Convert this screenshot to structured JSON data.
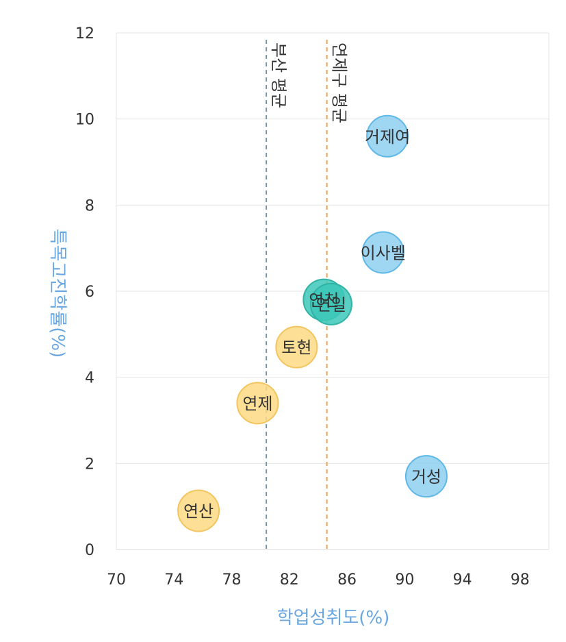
{
  "chart_data": {
    "type": "scatter",
    "xlabel": "학업성취도(%)",
    "ylabel": "특목고진학률(%)",
    "xlim": [
      70,
      100
    ],
    "ylim": [
      0,
      12
    ],
    "x_ticks": [
      70,
      74,
      78,
      82,
      86,
      90,
      94,
      98
    ],
    "y_ticks": [
      0,
      2,
      4,
      6,
      8,
      10,
      12
    ],
    "grid": "horizontal",
    "points": [
      {
        "label": "거제여",
        "x": 88.8,
        "y": 9.6,
        "color": "#8ECFF0",
        "stroke": "#5FB8E6"
      },
      {
        "label": "이사벨",
        "x": 88.5,
        "y": 6.9,
        "color": "#8ECFF0",
        "stroke": "#5FB8E6"
      },
      {
        "label": "거성",
        "x": 91.5,
        "y": 1.7,
        "color": "#8ECFF0",
        "stroke": "#5FB8E6"
      },
      {
        "label": "연천",
        "x": 84.4,
        "y": 5.8,
        "color": "#3CC8B8",
        "stroke": "#2FB3A4"
      },
      {
        "label": "연일",
        "x": 84.9,
        "y": 5.7,
        "color": "#3CC8B8",
        "stroke": "#2FB3A4"
      },
      {
        "label": "토현",
        "x": 82.5,
        "y": 4.7,
        "color": "#FDD983",
        "stroke": "#F2C560"
      },
      {
        "label": "연제",
        "x": 79.8,
        "y": 3.4,
        "color": "#FDD983",
        "stroke": "#F2C560"
      },
      {
        "label": "연산",
        "x": 75.7,
        "y": 0.9,
        "color": "#FDD983",
        "stroke": "#F2C560"
      }
    ],
    "reference_lines": [
      {
        "label": "부산 평균",
        "x": 80.4,
        "color": "#7B95A6"
      },
      {
        "label": "연제구 평균",
        "x": 84.6,
        "color": "#F0A050"
      }
    ],
    "axis_title_color": "#6AA6E0"
  }
}
